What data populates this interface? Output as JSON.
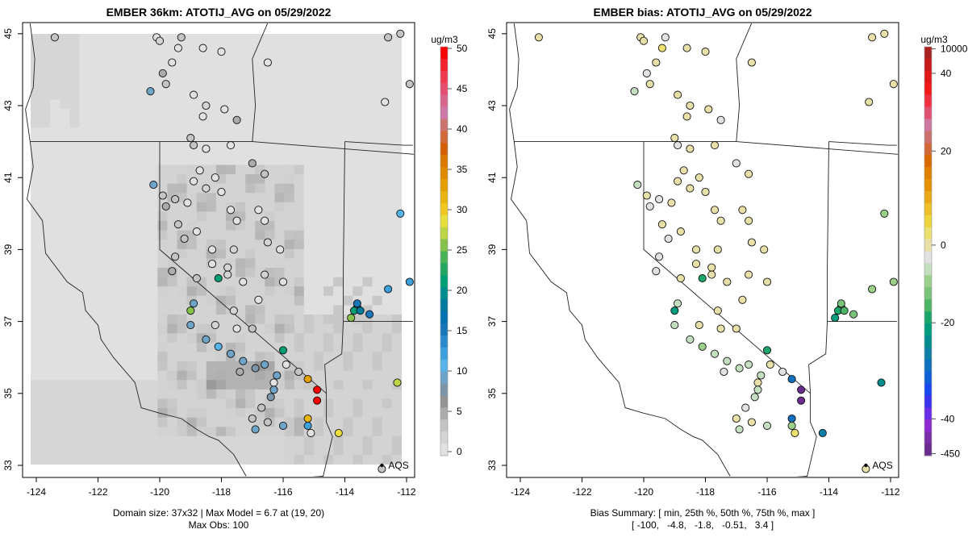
{
  "chart_data": [
    {
      "type": "heatmap",
      "title": "EMBER 36km: ATOTIJ_AVG on 05/29/2022",
      "xlabel": "",
      "ylabel": "",
      "xlim": [
        -124.3,
        -111.8
      ],
      "ylim": [
        32.7,
        45.3
      ],
      "x_ticks": [
        "-124",
        "-122",
        "-120",
        "-118",
        "-116",
        "-114",
        "-112"
      ],
      "y_ticks": [
        "33",
        "35",
        "37",
        "39",
        "41",
        "43",
        "45"
      ],
      "legend": {
        "unit": "ug/m3",
        "placement": "right",
        "ticks": [
          "0",
          "5",
          "10",
          "15",
          "20",
          "25",
          "30",
          "35",
          "40",
          "45",
          "50"
        ],
        "colors": [
          "#e2e2e2",
          "#d4d4d4",
          "#c4c4c4",
          "#ababab",
          "#939393",
          "#7d95a8",
          "#6ea4c8",
          "#56b4e9",
          "#3ba0dc",
          "#2a89cc",
          "#1976b8",
          "#0072b2",
          "#00799e",
          "#008c8c",
          "#009e73",
          "#22a660",
          "#49b457",
          "#86c24a",
          "#bcd542",
          "#e8df3c",
          "#f0c71f",
          "#e9b40d",
          "#e69f00",
          "#e08a00",
          "#db7800",
          "#d55e00",
          "#d06a3b",
          "#cc7370",
          "#cc79a7",
          "#d9668c",
          "#e64d6e",
          "#f03a4f",
          "#f5222d",
          "#ff0000"
        ]
      },
      "footer": [
        "Domain size: 37x32 | Max Model = 6.7 at (19, 20)",
        "Max Obs: 100"
      ],
      "site_label": "AQS",
      "model_grid": {
        "background_value": 0.8,
        "ocean_south_value": 1.5,
        "note": "gridded 36km cells, values ~0-6.7"
      },
      "sites": [
        {
          "lon": -123.4,
          "lat": 44.9,
          "v": 3.0
        },
        {
          "lon": -119.3,
          "lat": 44.9,
          "v": 4.0
        },
        {
          "lon": -118.6,
          "lat": 44.6,
          "v": 1.0
        },
        {
          "lon": -118.0,
          "lat": 44.5,
          "v": 0.5
        },
        {
          "lon": -116.5,
          "lat": 44.2,
          "v": 0.8
        },
        {
          "lon": -112.6,
          "lat": 44.9,
          "v": 3.5
        },
        {
          "lon": -112.2,
          "lat": 45.0,
          "v": 3.0
        },
        {
          "lon": -111.9,
          "lat": 43.6,
          "v": 3.0
        },
        {
          "lon": -112.7,
          "lat": 43.1,
          "v": 0.5
        },
        {
          "lon": -120.1,
          "lat": 44.9,
          "v": 0.6
        },
        {
          "lon": -120.0,
          "lat": 44.8,
          "v": 2.5
        },
        {
          "lon": -119.4,
          "lat": 44.6,
          "v": 0.4
        },
        {
          "lon": -119.6,
          "lat": 44.2,
          "v": 0.5
        },
        {
          "lon": -119.9,
          "lat": 43.9,
          "v": 5.0
        },
        {
          "lon": -119.8,
          "lat": 43.6,
          "v": 3.5
        },
        {
          "lon": -120.3,
          "lat": 43.4,
          "v": 9.0
        },
        {
          "lon": -118.9,
          "lat": 43.3,
          "v": 0.5
        },
        {
          "lon": -118.5,
          "lat": 43.0,
          "v": 2.5
        },
        {
          "lon": -118.6,
          "lat": 42.7,
          "v": 0.5
        },
        {
          "lon": -117.9,
          "lat": 42.9,
          "v": 0.5
        },
        {
          "lon": -117.5,
          "lat": 42.6,
          "v": 4.5
        },
        {
          "lon": -119.0,
          "lat": 42.1,
          "v": 3.0
        },
        {
          "lon": -118.9,
          "lat": 41.9,
          "v": 4.0
        },
        {
          "lon": -118.5,
          "lat": 41.8,
          "v": 1.0
        },
        {
          "lon": -117.7,
          "lat": 41.9,
          "v": 0.5
        },
        {
          "lon": -117.0,
          "lat": 41.4,
          "v": 5.0
        },
        {
          "lon": -116.6,
          "lat": 41.1,
          "v": 3.0
        },
        {
          "lon": -118.7,
          "lat": 41.2,
          "v": 0.5
        },
        {
          "lon": -118.9,
          "lat": 40.9,
          "v": 1.0
        },
        {
          "lon": -118.2,
          "lat": 41.0,
          "v": 0.5
        },
        {
          "lon": -118.5,
          "lat": 40.7,
          "v": 2.0
        },
        {
          "lon": -118.0,
          "lat": 40.6,
          "v": 0.5
        },
        {
          "lon": -117.7,
          "lat": 40.1,
          "v": 0.5
        },
        {
          "lon": -117.5,
          "lat": 39.8,
          "v": 1.0
        },
        {
          "lon": -116.8,
          "lat": 40.1,
          "v": 0.5
        },
        {
          "lon": -116.6,
          "lat": 39.8,
          "v": 1.0
        },
        {
          "lon": -120.2,
          "lat": 40.8,
          "v": 9.0
        },
        {
          "lon": -119.9,
          "lat": 40.5,
          "v": 3.0
        },
        {
          "lon": -119.5,
          "lat": 40.4,
          "v": 4.0
        },
        {
          "lon": -119.8,
          "lat": 40.2,
          "v": 4.5
        },
        {
          "lon": -119.1,
          "lat": 40.3,
          "v": 0.8
        },
        {
          "lon": -119.4,
          "lat": 39.7,
          "v": 3.0
        },
        {
          "lon": -118.8,
          "lat": 39.5,
          "v": 1.0
        },
        {
          "lon": -119.2,
          "lat": 39.3,
          "v": 4.0
        },
        {
          "lon": -118.3,
          "lat": 39.0,
          "v": 0.5
        },
        {
          "lon": -117.6,
          "lat": 39.0,
          "v": 2.0
        },
        {
          "lon": -116.5,
          "lat": 39.2,
          "v": 1.5
        },
        {
          "lon": -116.1,
          "lat": 39.0,
          "v": 0.5
        },
        {
          "lon": -119.5,
          "lat": 38.8,
          "v": 4.0
        },
        {
          "lon": -119.6,
          "lat": 38.4,
          "v": 4.5
        },
        {
          "lon": -118.8,
          "lat": 38.2,
          "v": 3.5
        },
        {
          "lon": -118.3,
          "lat": 38.6,
          "v": 0.5
        },
        {
          "lon": -117.8,
          "lat": 38.5,
          "v": 2.5
        },
        {
          "lon": -117.8,
          "lat": 38.3,
          "v": 1.5
        },
        {
          "lon": -118.1,
          "lat": 38.2,
          "v": 22.0
        },
        {
          "lon": -117.3,
          "lat": 38.1,
          "v": 1.0
        },
        {
          "lon": -116.6,
          "lat": 38.3,
          "v": 1.5
        },
        {
          "lon": -116.0,
          "lat": 38.1,
          "v": 0.5
        },
        {
          "lon": -116.8,
          "lat": 37.6,
          "v": 0.5
        },
        {
          "lon": -117.6,
          "lat": 37.3,
          "v": 2.0
        },
        {
          "lon": -118.9,
          "lat": 37.5,
          "v": 9.0
        },
        {
          "lon": -119.0,
          "lat": 37.3,
          "v": 25.0
        },
        {
          "lon": -119.0,
          "lat": 36.9,
          "v": 10.0
        },
        {
          "lon": -118.2,
          "lat": 36.9,
          "v": 1.5
        },
        {
          "lon": -117.5,
          "lat": 36.8,
          "v": 0.5
        },
        {
          "lon": -117.0,
          "lat": 36.8,
          "v": 3.0
        },
        {
          "lon": -118.5,
          "lat": 36.5,
          "v": 10.0
        },
        {
          "lon": -118.1,
          "lat": 36.3,
          "v": 11.0
        },
        {
          "lon": -117.7,
          "lat": 36.1,
          "v": 10.0
        },
        {
          "lon": -117.3,
          "lat": 35.9,
          "v": 9.0
        },
        {
          "lon": -116.9,
          "lat": 35.7,
          "v": 8.0
        },
        {
          "lon": -116.6,
          "lat": 35.8,
          "v": 9.0
        },
        {
          "lon": -116.0,
          "lat": 36.2,
          "v": 21.0
        },
        {
          "lon": -117.4,
          "lat": 35.6,
          "v": 5.0
        },
        {
          "lon": -116.2,
          "lat": 35.5,
          "v": 10.0
        },
        {
          "lon": -115.9,
          "lat": 35.8,
          "v": 1.0
        },
        {
          "lon": -115.5,
          "lat": 35.6,
          "v": 4.0
        },
        {
          "lon": -115.2,
          "lat": 35.4,
          "v": 33.0
        },
        {
          "lon": -114.9,
          "lat": 35.1,
          "v": 50.0
        },
        {
          "lon": -114.9,
          "lat": 34.8,
          "v": 50.0
        },
        {
          "lon": -116.3,
          "lat": 35.3,
          "v": 0.5
        },
        {
          "lon": -116.3,
          "lat": 35.1,
          "v": 10.0
        },
        {
          "lon": -116.4,
          "lat": 34.9,
          "v": 8.0
        },
        {
          "lon": -116.7,
          "lat": 34.6,
          "v": 4.0
        },
        {
          "lon": -117.0,
          "lat": 34.3,
          "v": 3.0
        },
        {
          "lon": -116.5,
          "lat": 34.2,
          "v": 3.0
        },
        {
          "lon": -116.9,
          "lat": 34.0,
          "v": 9.0
        },
        {
          "lon": -116.0,
          "lat": 34.1,
          "v": 9.0
        },
        {
          "lon": -115.2,
          "lat": 34.3,
          "v": 32.0
        },
        {
          "lon": -115.2,
          "lat": 34.1,
          "v": 12.0
        },
        {
          "lon": -115.1,
          "lat": 33.9,
          "v": 0.2
        },
        {
          "lon": -114.2,
          "lat": 33.9,
          "v": 29.0
        },
        {
          "lon": -112.3,
          "lat": 35.3,
          "v": 27.0
        },
        {
          "lon": -113.6,
          "lat": 37.4,
          "v": 17.0
        },
        {
          "lon": -113.7,
          "lat": 37.3,
          "v": 21.0
        },
        {
          "lon": -113.5,
          "lat": 37.3,
          "v": 18.0
        },
        {
          "lon": -113.6,
          "lat": 37.5,
          "v": 16.0
        },
        {
          "lon": -113.8,
          "lat": 37.1,
          "v": 25.0
        },
        {
          "lon": -113.2,
          "lat": 37.2,
          "v": 16.0
        },
        {
          "lon": -112.6,
          "lat": 37.9,
          "v": 12.0
        },
        {
          "lon": -111.9,
          "lat": 38.1,
          "v": 12.0
        },
        {
          "lon": -112.2,
          "lat": 40.0,
          "v": 11.0
        },
        {
          "lon": -112.8,
          "lat": 32.9,
          "v": 3.0
        }
      ]
    },
    {
      "type": "scatter",
      "title": "EMBER bias: ATOTIJ_AVG on 05/29/2022",
      "xlim": [
        -124.3,
        -111.8
      ],
      "ylim": [
        32.7,
        45.3
      ],
      "x_ticks": [
        "-124",
        "-122",
        "-120",
        "-118",
        "-116",
        "-114",
        "-112"
      ],
      "y_ticks": [
        "33",
        "35",
        "37",
        "39",
        "41",
        "43",
        "45"
      ],
      "legend": {
        "unit": "ug/m3",
        "placement": "right",
        "ticks": [
          "-450",
          "-40",
          "-20",
          "0",
          "20",
          "40",
          "10000"
        ],
        "colors": [
          "#6a2c8e",
          "#7a2fa8",
          "#8e2bd0",
          "#6a2de8",
          "#3a33f0",
          "#1848f0",
          "#0f5fd8",
          "#1070c0",
          "#0f7fa8",
          "#008c8c",
          "#009c7c",
          "#1aa66a",
          "#4db567",
          "#79c47a",
          "#9bd08a",
          "#c4dfc0",
          "#e2e2e2",
          "#e8e0a8",
          "#ece070",
          "#f0d43c",
          "#eec028",
          "#eaa818",
          "#e69200",
          "#e08000",
          "#d86a00",
          "#d2683a",
          "#cc7070",
          "#cc78a0",
          "#e05070",
          "#f03040",
          "#f51a1a",
          "#e01818",
          "#c81a1a",
          "#a82222"
        ]
      },
      "footer": [
        "Bias Summary: [ min, 25th %, 50th %, 75th %, max ]",
        "[ -100,   -4.8,   -1.8,   -0.51,   3.4 ]"
      ],
      "bias_summary": {
        "min": -100,
        "p25": -4.8,
        "p50": -1.8,
        "p75": -0.51,
        "max": 3.4
      },
      "site_label": "AQS"
    }
  ]
}
